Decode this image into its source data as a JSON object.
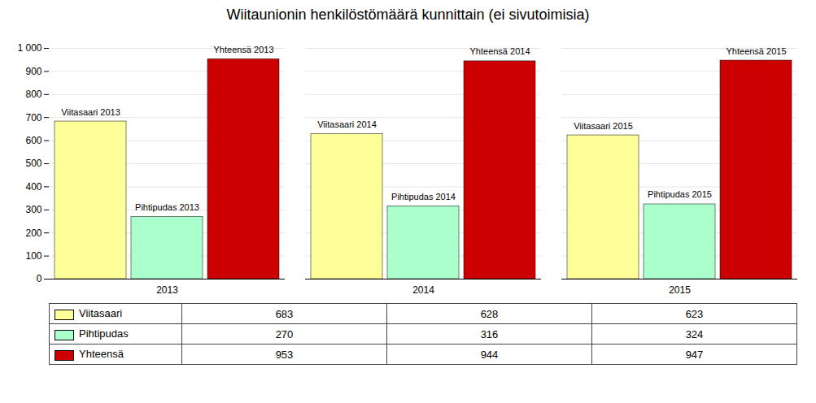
{
  "chart_data": {
    "type": "bar",
    "title": "Wiitaunionin henkilöstömäärä kunnittain (ei sivutoimisia)",
    "categories": [
      "2013",
      "2014",
      "2015"
    ],
    "series": [
      {
        "name": "Viitasaari",
        "color": "#ffff99",
        "values": [
          683,
          628,
          623
        ]
      },
      {
        "name": "Pihtipudas",
        "color": "#aaffcc",
        "values": [
          270,
          316,
          324
        ]
      },
      {
        "name": "Yhteensä",
        "color": "#cc0000",
        "values": [
          953,
          944,
          947
        ]
      }
    ],
    "ylim": [
      0,
      1000
    ],
    "yticks": [
      0,
      100,
      200,
      300,
      400,
      500,
      600,
      700,
      800,
      900,
      {
        "value": 1000,
        "label": "1 000"
      }
    ],
    "grid": true,
    "annotations": [
      {
        "text": "Viitasaari 2013",
        "category": "2013",
        "series": "Viitasaari"
      },
      {
        "text": "Viitasaari 2014",
        "category": "2014",
        "series": "Viitasaari"
      },
      {
        "text": "Viitasaari 2015",
        "category": "2015",
        "series": "Viitasaari"
      },
      {
        "text": "Pihtipudas 2013",
        "category": "2013",
        "series": "Pihtipudas"
      },
      {
        "text": "Pihtipudas 2014",
        "category": "2014",
        "series": "Pihtipudas"
      },
      {
        "text": "Pihtipudas 2015",
        "category": "2015",
        "series": "Pihtipudas"
      },
      {
        "text": "Yhteensä 2013",
        "category": "2013",
        "series": "Yhteensä"
      },
      {
        "text": "Yhteensä 2014",
        "category": "2014",
        "series": "Yhteensä"
      },
      {
        "text": "Yhteensä 2015",
        "category": "2015",
        "series": "Yhteensä"
      }
    ],
    "table": {
      "rows": [
        "Viitasaari",
        "Pihtipudas",
        "Yhteensä"
      ],
      "values": [
        [
          683,
          628,
          623
        ],
        [
          270,
          316,
          324
        ],
        [
          953,
          944,
          947
        ]
      ]
    }
  }
}
